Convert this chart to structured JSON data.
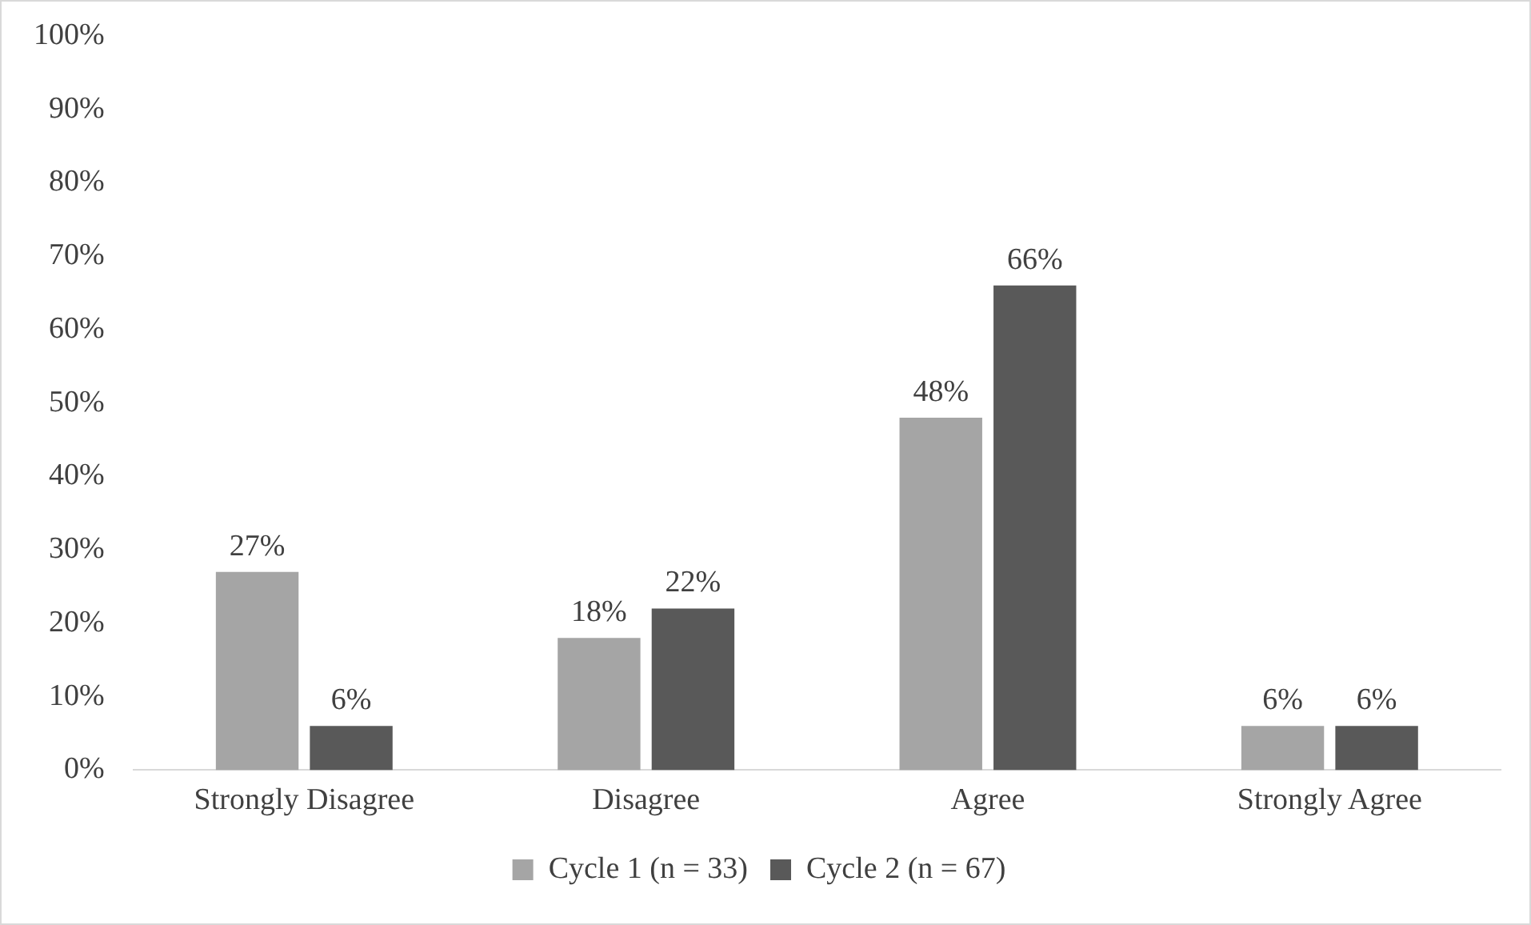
{
  "chart_data": {
    "type": "bar",
    "categories": [
      "Strongly Disagree",
      "Disagree",
      "Agree",
      "Strongly Agree"
    ],
    "series": [
      {
        "name": "Cycle 1 (n = 33)",
        "color": "#a5a5a5",
        "values": [
          27,
          18,
          48,
          6
        ],
        "value_labels": [
          "27%",
          "18%",
          "48%",
          "6%"
        ]
      },
      {
        "name": "Cycle 2 (n = 67)",
        "color": "#595959",
        "values": [
          6,
          22,
          66,
          6
        ],
        "value_labels": [
          "6%",
          "22%",
          "66%",
          "6%"
        ]
      }
    ],
    "ylim": [
      0,
      100
    ],
    "yticks": [
      {
        "value": 0,
        "label": "0%"
      },
      {
        "value": 10,
        "label": "10%"
      },
      {
        "value": 20,
        "label": "20%"
      },
      {
        "value": 30,
        "label": "30%"
      },
      {
        "value": 40,
        "label": "40%"
      },
      {
        "value": 50,
        "label": "50%"
      },
      {
        "value": 60,
        "label": "60%"
      },
      {
        "value": 70,
        "label": "70%"
      },
      {
        "value": 80,
        "label": "80%"
      },
      {
        "value": 90,
        "label": "90%"
      },
      {
        "value": 100,
        "label": "100%"
      }
    ],
    "grid": false,
    "legend": "bottom"
  }
}
